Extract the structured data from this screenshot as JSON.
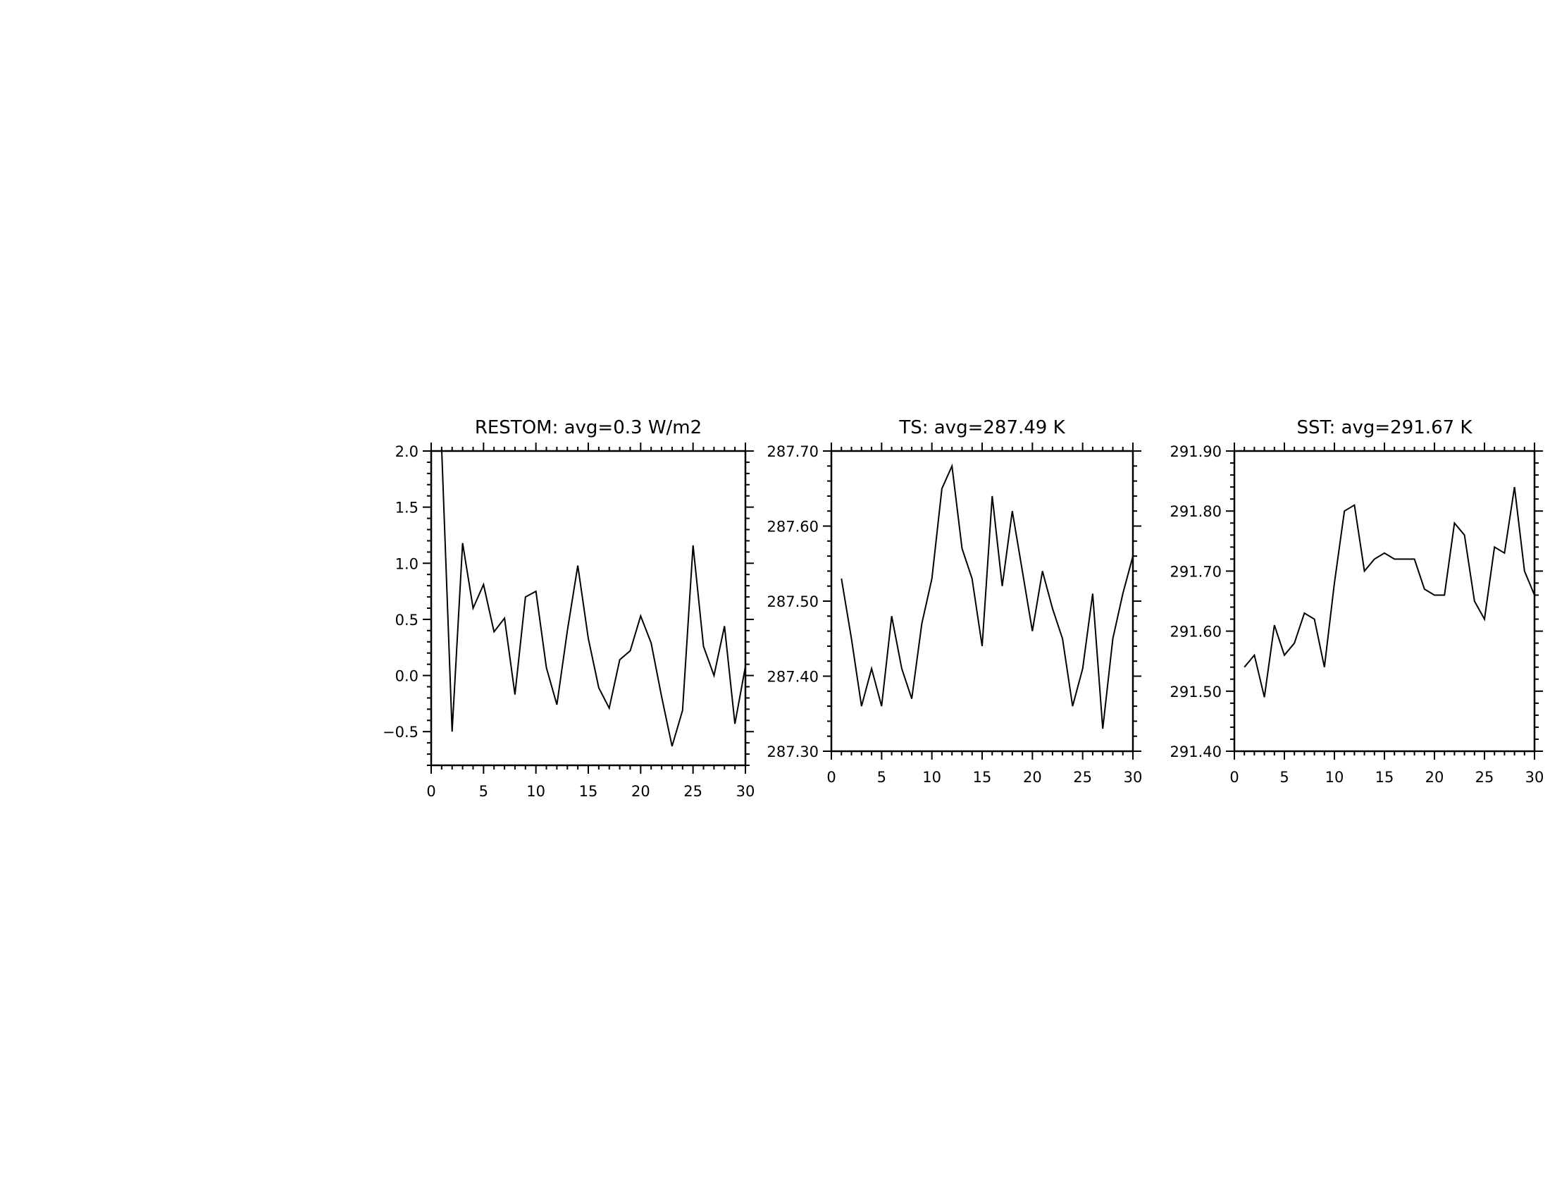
{
  "chart_data": [
    {
      "type": "line",
      "title": "RESTOM: avg=0.3 W/m2",
      "xlabel": "",
      "ylabel": "",
      "xlim": [
        0,
        30
      ],
      "ylim": [
        -0.8,
        2.0
      ],
      "xticks": [
        0,
        5,
        10,
        15,
        20,
        25,
        30
      ],
      "xtick_labels": [
        "0",
        "5",
        "10",
        "15",
        "20",
        "25",
        "30"
      ],
      "yticks": [
        -0.5,
        0.0,
        0.5,
        1.0,
        1.5,
        2.0
      ],
      "ytick_labels": [
        "−0.5",
        "0.0",
        "0.5",
        "1.0",
        "1.5",
        "2.0"
      ],
      "x": [
        1,
        2,
        3,
        4,
        5,
        6,
        7,
        8,
        9,
        10,
        11,
        12,
        13,
        14,
        15,
        16,
        17,
        18,
        19,
        20,
        21,
        22,
        23,
        24,
        25,
        26,
        27,
        28,
        29,
        30
      ],
      "y": [
        2.02,
        -0.5,
        1.18,
        0.6,
        0.81,
        0.39,
        0.51,
        -0.17,
        0.7,
        0.75,
        0.07,
        -0.26,
        0.4,
        0.98,
        0.33,
        -0.11,
        -0.29,
        0.14,
        0.22,
        0.53,
        0.29,
        -0.19,
        -0.63,
        -0.31,
        1.16,
        0.26,
        0.0,
        0.44,
        -0.43,
        0.08
      ]
    },
    {
      "type": "line",
      "title": "TS: avg=287.49 K",
      "xlabel": "",
      "ylabel": "",
      "xlim": [
        0,
        30
      ],
      "ylim": [
        287.3,
        287.7
      ],
      "xticks": [
        0,
        5,
        10,
        15,
        20,
        25,
        30
      ],
      "xtick_labels": [
        "0",
        "5",
        "10",
        "15",
        "20",
        "25",
        "30"
      ],
      "yticks": [
        287.3,
        287.4,
        287.5,
        287.6,
        287.7
      ],
      "ytick_labels": [
        "287.30",
        "287.40",
        "287.50",
        "287.60",
        "287.70"
      ],
      "x": [
        1,
        2,
        3,
        4,
        5,
        6,
        7,
        8,
        9,
        10,
        11,
        12,
        13,
        14,
        15,
        16,
        17,
        18,
        19,
        20,
        21,
        22,
        23,
        24,
        25,
        26,
        27,
        28,
        29,
        30
      ],
      "y": [
        287.53,
        287.45,
        287.36,
        287.41,
        287.36,
        287.48,
        287.41,
        287.37,
        287.47,
        287.53,
        287.65,
        287.68,
        287.57,
        287.53,
        287.44,
        287.64,
        287.52,
        287.62,
        287.54,
        287.46,
        287.54,
        287.49,
        287.45,
        287.36,
        287.41,
        287.51,
        287.33,
        287.45,
        287.51,
        287.56
      ]
    },
    {
      "type": "line",
      "title": "SST: avg=291.67 K",
      "xlabel": "",
      "ylabel": "",
      "xlim": [
        0,
        30
      ],
      "ylim": [
        291.4,
        291.9
      ],
      "xticks": [
        0,
        5,
        10,
        15,
        20,
        25,
        30
      ],
      "xtick_labels": [
        "0",
        "5",
        "10",
        "15",
        "20",
        "25",
        "30"
      ],
      "yticks": [
        291.4,
        291.5,
        291.6,
        291.7,
        291.8,
        291.9
      ],
      "ytick_labels": [
        "291.40",
        "291.50",
        "291.60",
        "291.70",
        "291.80",
        "291.90"
      ],
      "x": [
        1,
        2,
        3,
        4,
        5,
        6,
        7,
        8,
        9,
        10,
        11,
        12,
        13,
        14,
        15,
        16,
        17,
        18,
        19,
        20,
        21,
        22,
        23,
        24,
        25,
        26,
        27,
        28,
        29,
        30
      ],
      "y": [
        291.54,
        291.56,
        291.49,
        291.61,
        291.56,
        291.58,
        291.63,
        291.62,
        291.54,
        291.68,
        291.8,
        291.81,
        291.7,
        291.72,
        291.73,
        291.72,
        291.72,
        291.72,
        291.67,
        291.66,
        291.66,
        291.78,
        291.76,
        291.65,
        291.62,
        291.74,
        291.73,
        291.84,
        291.7,
        291.66
      ]
    }
  ]
}
